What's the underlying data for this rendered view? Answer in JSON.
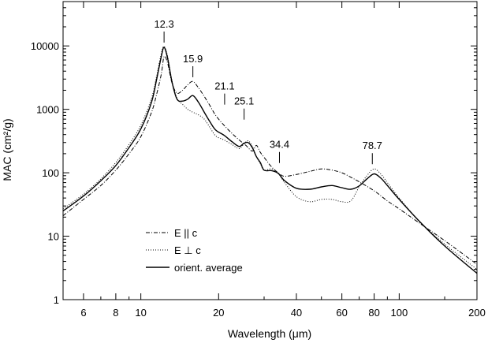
{
  "chart_data": {
    "type": "line",
    "xlabel": "Wavelength (μm)",
    "ylabel": "MAC (cm²/g)",
    "x_scale": "log",
    "y_scale": "log",
    "xlim": [
      5,
      200
    ],
    "ylim": [
      1,
      50000
    ],
    "x_ticks": [
      6,
      8,
      10,
      20,
      40,
      60,
      80,
      100,
      200
    ],
    "x_tick_labels": [
      "6",
      "8",
      "10",
      "20",
      "40",
      "60",
      "80",
      "100",
      "200"
    ],
    "y_ticks": [
      1,
      10,
      100,
      1000,
      10000
    ],
    "y_tick_labels": [
      "1",
      "10",
      "100",
      "1000",
      "10000"
    ],
    "grid": false,
    "legend_position": "bottom-left",
    "annotations": [
      {
        "label": "12.3",
        "x": 12.3,
        "y": 9500
      },
      {
        "label": "15.9",
        "x": 15.9,
        "y": 2700
      },
      {
        "label": "21.1",
        "x": 21.1,
        "y": 1000
      },
      {
        "label": "25.1",
        "x": 25.1,
        "y": 580
      },
      {
        "label": "34.4",
        "x": 34.4,
        "y": 120
      },
      {
        "label": "78.7",
        "x": 78.7,
        "y": 115
      }
    ],
    "series": [
      {
        "name": "E || c",
        "style": "dashdot",
        "x": [
          5,
          6,
          7,
          8,
          9,
          10,
          11,
          11.5,
          12,
          12.3,
          12.7,
          13.2,
          13.8,
          14.5,
          15.2,
          15.9,
          16.7,
          17.6,
          18.5,
          19.5,
          21,
          22.5,
          24,
          25.5,
          27,
          28,
          29,
          30.5,
          32,
          34,
          36,
          40,
          45,
          50,
          55,
          60,
          65,
          70,
          80,
          90,
          100,
          120,
          150,
          200
        ],
        "y": [
          21,
          38,
          63,
          110,
          200,
          370,
          900,
          1700,
          3600,
          6800,
          5300,
          2600,
          1800,
          2000,
          2450,
          2750,
          2200,
          1600,
          1150,
          800,
          560,
          420,
          330,
          270,
          220,
          270,
          210,
          160,
          125,
          100,
          88,
          94,
          105,
          115,
          110,
          100,
          85,
          72,
          52,
          36,
          27,
          16,
          8.5,
          3.6
        ]
      },
      {
        "name": "E ⊥ c",
        "style": "dotted",
        "x": [
          5,
          6,
          7,
          8,
          9,
          10,
          11,
          11.5,
          12,
          12.3,
          12.7,
          13.2,
          13.8,
          14.5,
          15.2,
          15.9,
          16.7,
          17.6,
          18.5,
          19.5,
          21,
          22.5,
          24,
          25,
          26,
          27,
          28,
          29,
          30,
          32,
          34,
          36,
          40,
          45,
          50,
          55,
          60,
          65,
          70,
          75,
          80,
          85,
          90,
          100,
          120,
          150,
          200
        ],
        "y": [
          27,
          46,
          80,
          145,
          280,
          560,
          1500,
          3300,
          7600,
          9800,
          6800,
          2800,
          1500,
          1200,
          1000,
          900,
          820,
          700,
          520,
          380,
          330,
          280,
          240,
          280,
          320,
          260,
          180,
          140,
          110,
          115,
          98,
          70,
          42,
          35,
          38,
          38,
          35,
          36,
          60,
          90,
          115,
          95,
          70,
          40,
          17,
          7.5,
          3.0
        ]
      },
      {
        "name": "orient. average",
        "style": "solid",
        "x": [
          5,
          6,
          7,
          8,
          9,
          10,
          11,
          11.5,
          12,
          12.3,
          12.7,
          13.2,
          13.8,
          14.5,
          15.2,
          15.9,
          16.7,
          17.6,
          18.5,
          19.5,
          21,
          22.5,
          24,
          25,
          26,
          27,
          28,
          29,
          30,
          32,
          34,
          36,
          40,
          45,
          50,
          55,
          60,
          65,
          70,
          75,
          80,
          85,
          90,
          100,
          120,
          150,
          200
        ],
        "y": [
          25,
          43,
          75,
          130,
          250,
          490,
          1300,
          2900,
          6800,
          9500,
          6300,
          2700,
          1450,
          1350,
          1450,
          1650,
          1300,
          900,
          640,
          470,
          390,
          310,
          260,
          290,
          300,
          250,
          180,
          145,
          110,
          108,
          98,
          75,
          57,
          55,
          60,
          63,
          58,
          55,
          62,
          80,
          96,
          82,
          63,
          38,
          17,
          7,
          2.6
        ]
      }
    ]
  }
}
